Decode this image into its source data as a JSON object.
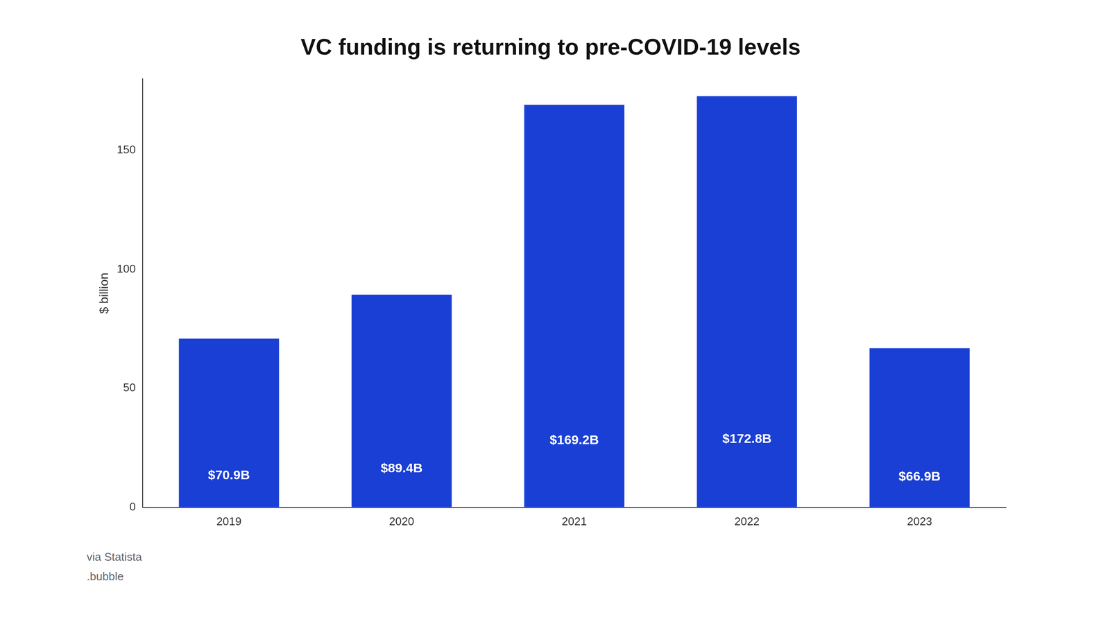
{
  "chart_data": {
    "type": "bar",
    "title": "VC funding is returning to pre-COVID-19 levels",
    "categories": [
      "2019",
      "2020",
      "2021",
      "2022",
      "2023"
    ],
    "values": [
      70.9,
      89.4,
      169.2,
      172.8,
      66.9
    ],
    "value_labels": [
      "$70.9B",
      "$89.4B",
      "$169.2B",
      "$172.8B",
      "$66.9B"
    ],
    "data_labels": true,
    "color": "#1a3fd4",
    "ylabel": "$ billion",
    "ylim": [
      0,
      180
    ],
    "yticks": [
      0,
      50,
      100,
      150
    ],
    "grid": false,
    "annotations": [
      "via Statista",
      ".bubble"
    ]
  }
}
